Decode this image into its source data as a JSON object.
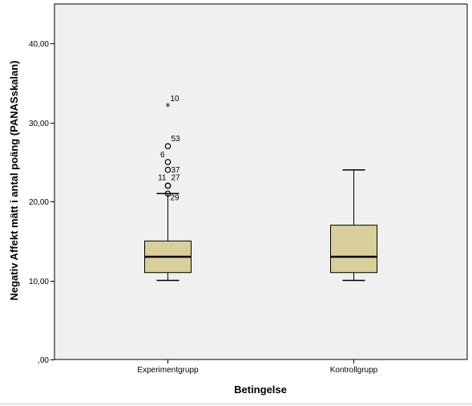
{
  "chart_data": {
    "type": "boxplot",
    "xlabel": "Betingelse",
    "ylabel": "Negativ Affekt mätt i antal poäng (PANASskalan)",
    "ylim": [
      0,
      45
    ],
    "yticks": [
      {
        "value": 0,
        "label": ",00"
      },
      {
        "value": 10,
        "label": "10,00"
      },
      {
        "value": 20,
        "label": "20,00"
      },
      {
        "value": 30,
        "label": "30,00"
      },
      {
        "value": 40,
        "label": "40,00"
      }
    ],
    "grid": false,
    "colors": {
      "plot_bg": "#f0f0f0",
      "box_fill": "#d9cf9b",
      "stroke": "#000000",
      "median": "#000000"
    },
    "groups": [
      {
        "category": "Experimentgrupp",
        "whisker_low": 10,
        "q1": 11,
        "median": 13,
        "q3": 15,
        "whisker_high": 21,
        "outliers": [
          {
            "value": 32,
            "label": "10",
            "marker": "star"
          },
          {
            "value": 27,
            "label": "53",
            "marker": "circle"
          },
          {
            "value": 25,
            "label": "6",
            "marker": "circle"
          },
          {
            "value": 24,
            "label": "37",
            "marker": "circle"
          },
          {
            "value": 22,
            "label": "11",
            "marker": "circle"
          },
          {
            "value": 22,
            "label": "27",
            "marker": "circle"
          },
          {
            "value": 21,
            "label": "29",
            "marker": "circle"
          }
        ]
      },
      {
        "category": "Kontrollgrupp",
        "whisker_low": 10,
        "q1": 11,
        "median": 13,
        "q3": 17,
        "whisker_high": 24,
        "outliers": []
      }
    ]
  }
}
